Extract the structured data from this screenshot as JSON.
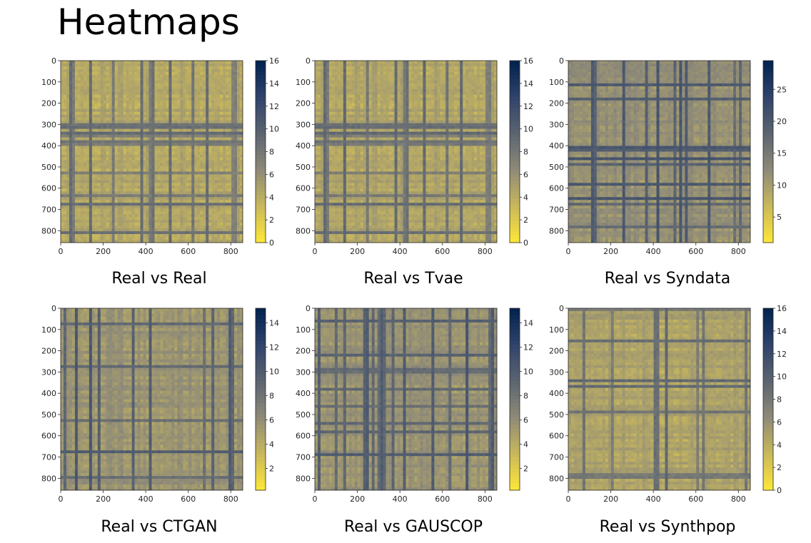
{
  "page": {
    "title": "Heatmaps"
  },
  "chart_data": [
    {
      "type": "heatmap",
      "title": "Real vs Real",
      "size": 856,
      "xticks": [
        "0",
        "200",
        "400",
        "600",
        "800"
      ],
      "yticks": [
        "0",
        "100",
        "200",
        "300",
        "400",
        "500",
        "600",
        "700",
        "800"
      ],
      "colorbar": {
        "min": 0,
        "max": 16,
        "ticks": [
          "0",
          "2",
          "4",
          "6",
          "8",
          "10",
          "12",
          "14",
          "16"
        ]
      },
      "level": 0.2,
      "seed": 11
    },
    {
      "type": "heatmap",
      "title": "Real vs Tvae",
      "size": 856,
      "xticks": [
        "0",
        "200",
        "400",
        "600",
        "800"
      ],
      "yticks": [
        "0",
        "100",
        "200",
        "300",
        "400",
        "500",
        "600",
        "700",
        "800"
      ],
      "colorbar": {
        "min": 0,
        "max": 16,
        "ticks": [
          "0",
          "2",
          "4",
          "6",
          "8",
          "10",
          "12",
          "14",
          "16"
        ]
      },
      "level": 0.21,
      "seed": 11
    },
    {
      "type": "heatmap",
      "title": "Real vs Syndata",
      "size": 856,
      "xticks": [
        "0",
        "200",
        "400",
        "600",
        "800"
      ],
      "yticks": [
        "0",
        "100",
        "200",
        "300",
        "400",
        "500",
        "600",
        "700",
        "800"
      ],
      "colorbar": {
        "min": 1,
        "max": 29.5,
        "ticks": [
          "5",
          "10",
          "15",
          "20",
          "25"
        ]
      },
      "level": 0.3,
      "seed": 29
    },
    {
      "type": "heatmap",
      "title": "Real vs CTGAN",
      "size": 856,
      "xticks": [
        "0",
        "200",
        "400",
        "600",
        "800"
      ],
      "yticks": [
        "0",
        "100",
        "200",
        "300",
        "400",
        "500",
        "600",
        "700",
        "800"
      ],
      "colorbar": {
        "min": 0.2,
        "max": 15.2,
        "ticks": [
          "2",
          "4",
          "6",
          "8",
          "10",
          "12",
          "14"
        ]
      },
      "level": 0.28,
      "seed": 47
    },
    {
      "type": "heatmap",
      "title": "Real vs GAUSCOP",
      "size": 856,
      "xticks": [
        "0",
        "200",
        "400",
        "600",
        "800"
      ],
      "yticks": [
        "0",
        "100",
        "200",
        "300",
        "400",
        "500",
        "600",
        "700",
        "800"
      ],
      "colorbar": {
        "min": 0.2,
        "max": 15.2,
        "ticks": [
          "2",
          "4",
          "6",
          "8",
          "10",
          "12",
          "14"
        ]
      },
      "level": 0.29,
      "seed": 53
    },
    {
      "type": "heatmap",
      "title": "Real vs Synthpop",
      "size": 856,
      "xticks": [
        "0",
        "200",
        "400",
        "600",
        "800"
      ],
      "yticks": [
        "0",
        "100",
        "200",
        "300",
        "400",
        "500",
        "600",
        "700",
        "800"
      ],
      "colorbar": {
        "min": 0,
        "max": 16,
        "ticks": [
          "0",
          "2",
          "4",
          "6",
          "8",
          "10",
          "12",
          "14",
          "16"
        ]
      },
      "level": 0.22,
      "seed": 71
    }
  ],
  "colormap": [
    "#fde838",
    "#c9b85c",
    "#8e8a78",
    "#5b6470",
    "#30436a",
    "#00224e"
  ]
}
